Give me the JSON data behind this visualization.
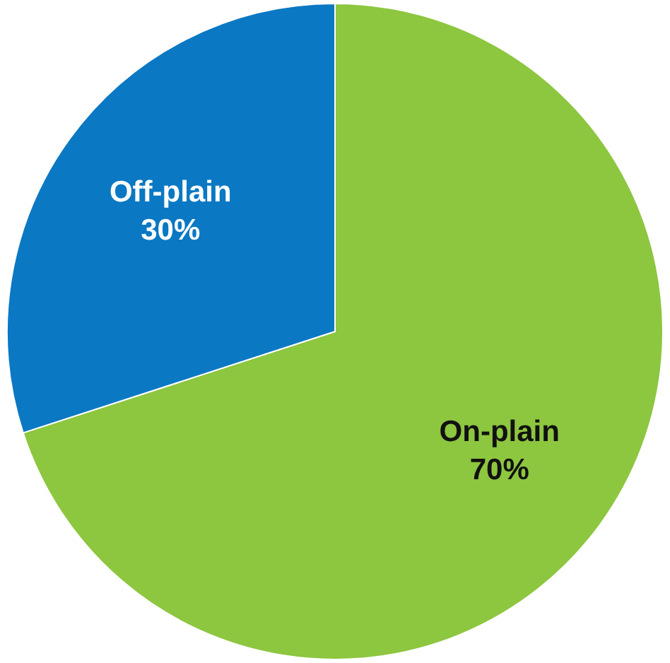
{
  "chart_data": {
    "type": "pie",
    "categories": [
      "On-plain",
      "Off-plain"
    ],
    "values": [
      70,
      30
    ],
    "colors": [
      "#8dc63f",
      "#0b78c3"
    ],
    "data_labels": true,
    "value_labels": [
      "70%",
      "30%"
    ],
    "legend": false
  }
}
